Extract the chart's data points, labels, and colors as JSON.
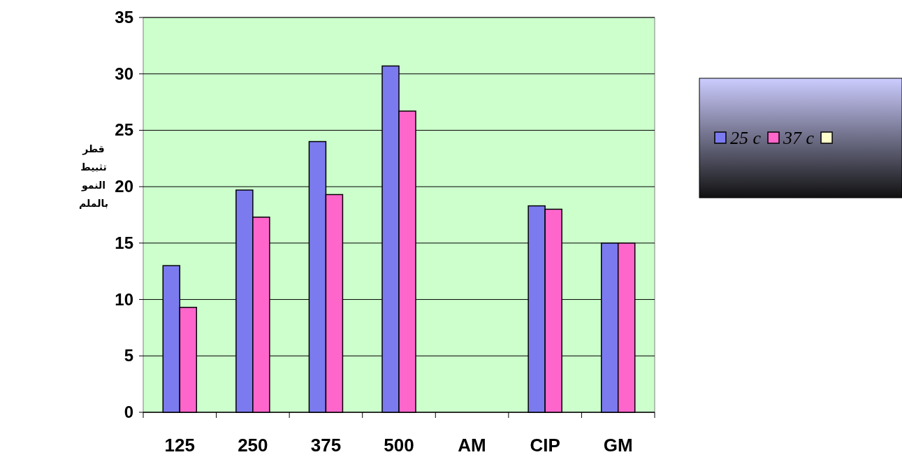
{
  "chart_data": {
    "type": "bar",
    "ylabel": "قطر تثبيط النمو بالملم",
    "categories": [
      "125",
      "250",
      "375",
      "500",
      "AM",
      "CIP",
      "GM"
    ],
    "series": [
      {
        "name": "*25 c*",
        "color": "#7b7bef",
        "values": [
          13,
          19.7,
          24,
          30.7,
          null,
          18.3,
          15
        ]
      },
      {
        "name": "*37 c*",
        "color": "#ff66cc",
        "values": [
          9.3,
          17.3,
          19.3,
          26.7,
          null,
          18,
          15
        ]
      },
      {
        "color": "#ffffcc",
        "values": [
          null,
          null,
          null,
          null,
          null,
          null,
          null
        ]
      }
    ],
    "ylim": [
      0,
      35
    ],
    "yticks": [
      0,
      5,
      10,
      15,
      20,
      25,
      30,
      35
    ],
    "grid": "y",
    "legend": "right"
  }
}
